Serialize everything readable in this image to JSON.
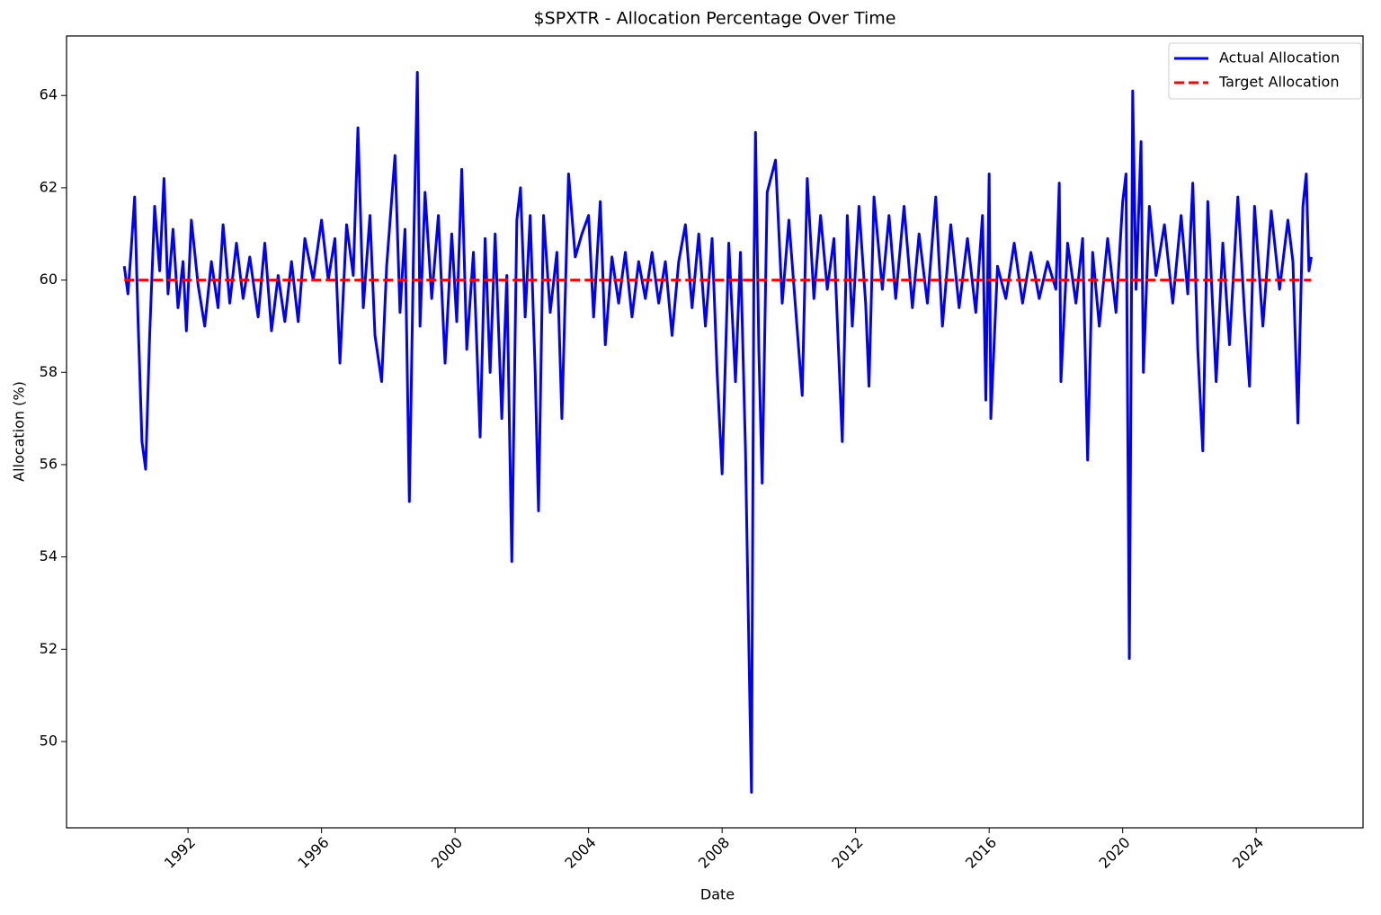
{
  "chart_data": {
    "type": "line",
    "title": "$SPXTR - Allocation Percentage Over Time",
    "xlabel": "Date",
    "ylabel": "Allocation (%)",
    "xlim": [
      1988.36,
      2027.2
    ],
    "ylim": [
      48.13,
      65.29
    ],
    "xticks": [
      1992,
      1996,
      2000,
      2004,
      2008,
      2012,
      2016,
      2020,
      2024
    ],
    "yticks": [
      50,
      52,
      54,
      56,
      58,
      60,
      62,
      64
    ],
    "grid": false,
    "legend": "upper right",
    "series": [
      {
        "name": "Actual Allocation",
        "color": "#0000ff",
        "dash": "solid",
        "x": [
          1990.09,
          1990.2,
          1990.3,
          1990.4,
          1990.5,
          1990.62,
          1990.73,
          1990.85,
          1991.0,
          1991.15,
          1991.28,
          1991.4,
          1991.55,
          1991.7,
          1991.85,
          1991.95,
          1992.1,
          1992.3,
          1992.5,
          1992.7,
          1992.9,
          1993.05,
          1993.25,
          1993.45,
          1993.65,
          1993.85,
          1994.1,
          1994.3,
          1994.5,
          1994.7,
          1994.9,
          1995.1,
          1995.3,
          1995.5,
          1995.75,
          1996.0,
          1996.2,
          1996.4,
          1996.55,
          1996.75,
          1996.95,
          1997.09,
          1997.25,
          1997.45,
          1997.6,
          1997.8,
          1997.95,
          1998.2,
          1998.35,
          1998.5,
          1998.63,
          1998.75,
          1998.87,
          1998.95,
          1999.1,
          1999.3,
          1999.5,
          1999.7,
          1999.9,
          2000.05,
          2000.2,
          2000.35,
          2000.55,
          2000.75,
          2000.9,
          2001.05,
          2001.2,
          2001.4,
          2001.55,
          2001.7,
          2001.85,
          2001.96,
          2002.1,
          2002.25,
          2002.4,
          2002.5,
          2002.65,
          2002.85,
          2003.05,
          2003.2,
          2003.4,
          2003.6,
          2003.8,
          2004.0,
          2004.15,
          2004.35,
          2004.5,
          2004.7,
          2004.9,
          2005.1,
          2005.3,
          2005.5,
          2005.7,
          2005.9,
          2006.1,
          2006.3,
          2006.5,
          2006.7,
          2006.9,
          2007.1,
          2007.3,
          2007.5,
          2007.7,
          2007.85,
          2008.0,
          2008.2,
          2008.4,
          2008.55,
          2008.7,
          2008.8,
          2008.88,
          2008.95,
          2009.0,
          2009.1,
          2009.2,
          2009.35,
          2009.6,
          2009.8,
          2010.0,
          2010.2,
          2010.4,
          2010.55,
          2010.75,
          2010.95,
          2011.15,
          2011.35,
          2011.6,
          2011.75,
          2011.9,
          2012.1,
          2012.3,
          2012.4,
          2012.55,
          2012.8,
          2013.0,
          2013.2,
          2013.45,
          2013.7,
          2013.9,
          2014.15,
          2014.4,
          2014.6,
          2014.85,
          2015.1,
          2015.35,
          2015.6,
          2015.8,
          2015.9,
          2016.0,
          2016.05,
          2016.25,
          2016.5,
          2016.75,
          2017.0,
          2017.25,
          2017.5,
          2017.75,
          2018.0,
          2018.1,
          2018.15,
          2018.35,
          2018.6,
          2018.8,
          2018.95,
          2019.1,
          2019.3,
          2019.55,
          2019.8,
          2020.0,
          2020.1,
          2020.2,
          2020.3,
          2020.4,
          2020.55,
          2020.62,
          2020.8,
          2021.0,
          2021.25,
          2021.5,
          2021.75,
          2021.95,
          2022.1,
          2022.25,
          2022.4,
          2022.55,
          2022.8,
          2023.0,
          2023.2,
          2023.45,
          2023.65,
          2023.8,
          2023.95,
          2024.2,
          2024.45,
          2024.7,
          2024.95,
          2025.1,
          2025.25,
          2025.4,
          2025.5,
          2025.58,
          2025.65
        ],
        "values": [
          60.3,
          59.7,
          60.7,
          61.8,
          59.2,
          56.5,
          55.9,
          58.8,
          61.6,
          60.2,
          62.2,
          59.7,
          61.1,
          59.4,
          60.4,
          58.9,
          61.3,
          59.9,
          59.0,
          60.4,
          59.4,
          61.2,
          59.5,
          60.8,
          59.6,
          60.5,
          59.2,
          60.8,
          58.9,
          60.1,
          59.1,
          60.4,
          59.1,
          60.9,
          60.0,
          61.3,
          60.0,
          60.9,
          58.2,
          61.2,
          60.1,
          63.3,
          59.4,
          61.4,
          58.8,
          57.8,
          60.3,
          62.7,
          59.3,
          61.1,
          55.2,
          60.4,
          64.5,
          59.0,
          61.9,
          59.6,
          61.4,
          58.2,
          61.0,
          59.1,
          62.4,
          58.5,
          60.6,
          56.6,
          60.9,
          58.0,
          61.0,
          57.0,
          60.1,
          53.9,
          61.3,
          62.0,
          59.2,
          61.4,
          58.0,
          55.0,
          61.4,
          59.3,
          60.6,
          57.0,
          62.3,
          60.5,
          61.0,
          61.4,
          59.2,
          61.7,
          58.6,
          60.5,
          59.5,
          60.6,
          59.2,
          60.4,
          59.6,
          60.6,
          59.5,
          60.4,
          58.8,
          60.4,
          61.2,
          59.4,
          61.0,
          59.0,
          60.9,
          58.0,
          55.8,
          60.8,
          57.8,
          60.6,
          56.3,
          52.1,
          48.9,
          60.0,
          63.2,
          58.5,
          55.6,
          61.9,
          62.6,
          59.5,
          61.3,
          59.4,
          57.5,
          62.2,
          59.6,
          61.4,
          59.8,
          60.9,
          56.5,
          61.4,
          59.0,
          61.6,
          59.5,
          57.7,
          61.8,
          59.8,
          61.4,
          59.6,
          61.6,
          59.4,
          61.0,
          59.5,
          61.8,
          59.0,
          61.2,
          59.4,
          60.9,
          59.3,
          61.4,
          57.4,
          62.3,
          57.0,
          60.3,
          59.6,
          60.8,
          59.5,
          60.6,
          59.6,
          60.4,
          59.8,
          62.1,
          57.8,
          60.8,
          59.5,
          60.9,
          56.1,
          60.6,
          59.0,
          60.9,
          59.3,
          61.7,
          62.3,
          51.8,
          64.1,
          59.8,
          63.0,
          58.0,
          61.6,
          60.1,
          61.2,
          59.5,
          61.4,
          59.7,
          62.1,
          58.5,
          56.3,
          61.7,
          57.8,
          60.8,
          58.6,
          61.8,
          59.3,
          57.7,
          61.6,
          59.0,
          61.5,
          59.8,
          61.3,
          60.4,
          56.9,
          61.6,
          62.3,
          60.2,
          60.5
        ]
      },
      {
        "name": "Target Allocation",
        "color": "#ff0000",
        "dash": "dashed",
        "x": [
          1990.09,
          2025.65
        ],
        "values": [
          60,
          60
        ]
      }
    ]
  }
}
